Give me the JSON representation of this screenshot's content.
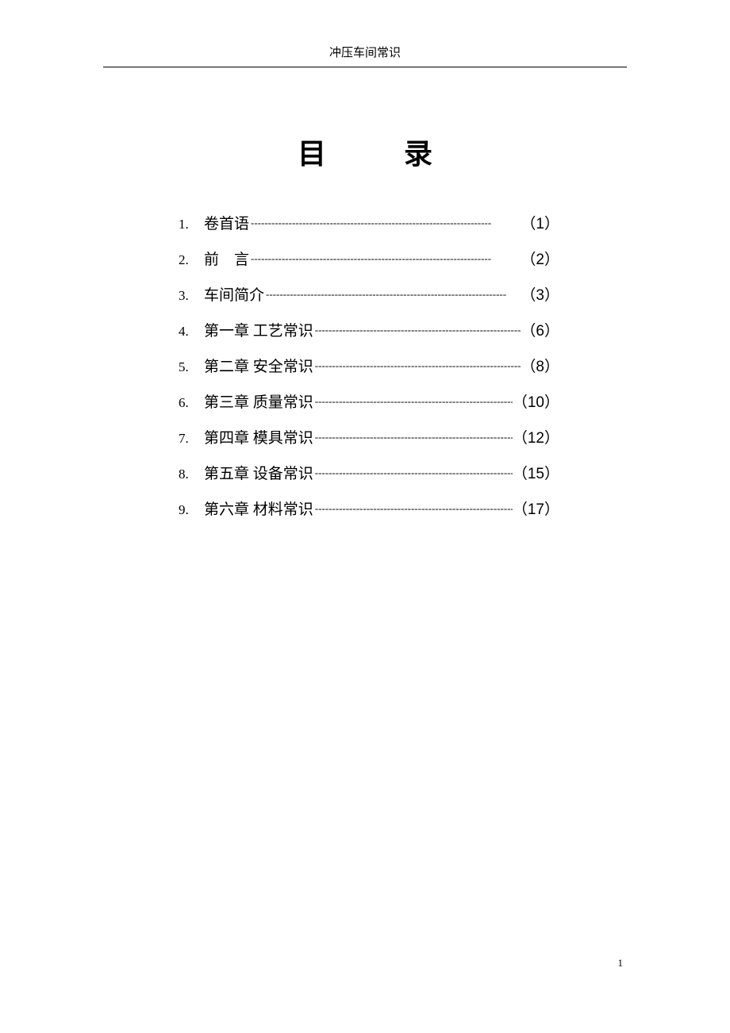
{
  "header": {
    "title": "冲压车间常识"
  },
  "mainTitle": {
    "char1": "目",
    "char2": "录"
  },
  "toc": {
    "items": [
      {
        "number": "1.",
        "label": "卷首语",
        "page": "（1）"
      },
      {
        "number": "2.",
        "label": "前　言",
        "page": "（2）"
      },
      {
        "number": "3.",
        "label": "车间简介",
        "page": "（3）"
      },
      {
        "number": "4.",
        "label": "第一章 工艺常识",
        "page": "（6）"
      },
      {
        "number": "5.",
        "label": "第二章 安全常识",
        "page": "（8）"
      },
      {
        "number": "6.",
        "label": "第三章 质量常识",
        "page": "（10）"
      },
      {
        "number": "7.",
        "label": "第四章 模具常识",
        "page": "（12）"
      },
      {
        "number": "8.",
        "label": "第五章 设备常识",
        "page": "（15）"
      },
      {
        "number": "9.",
        "label": "第六章 材料常识",
        "page": "（17）"
      }
    ]
  },
  "footer": {
    "pageNumber": "1"
  },
  "leaderChar": "----------------------------------------------------------------------"
}
